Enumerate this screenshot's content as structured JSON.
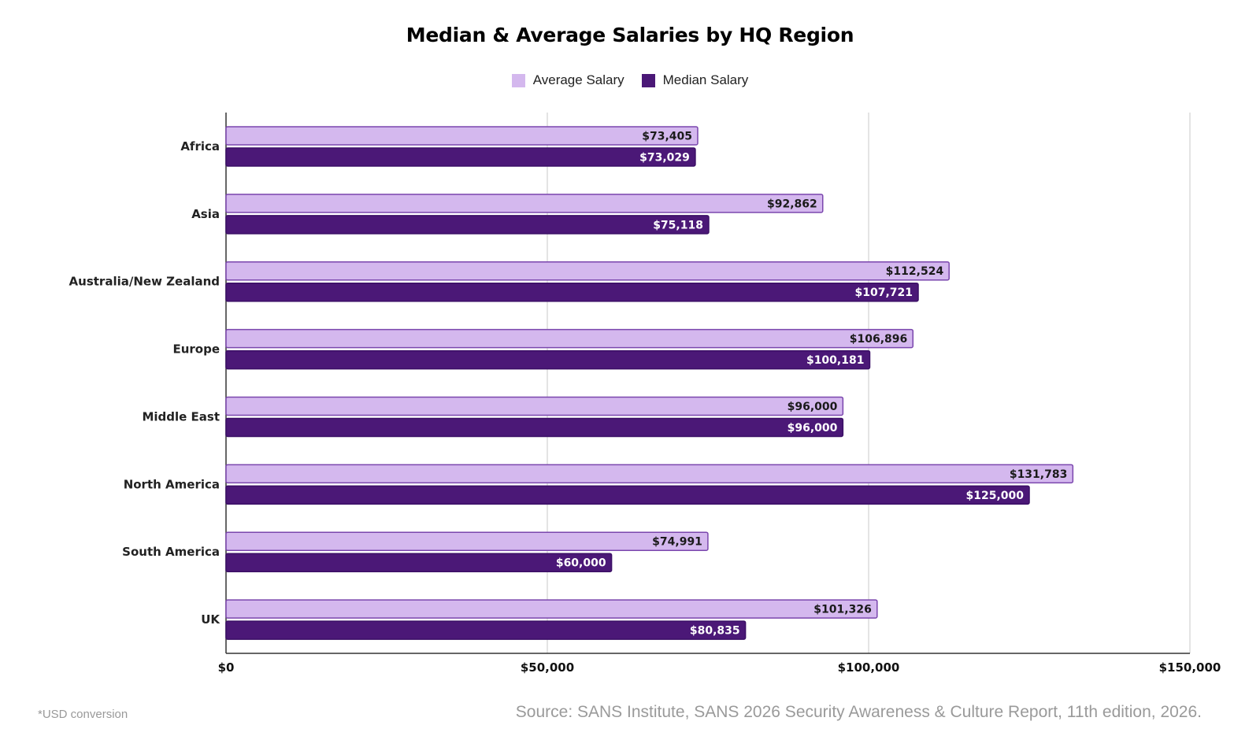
{
  "chart_data": {
    "type": "bar",
    "orientation": "horizontal",
    "title": "Median & Average Salaries by HQ Region",
    "categories": [
      "Africa",
      "Asia",
      "Australia/New Zealand",
      "Europe",
      "Middle East",
      "North America",
      "South America",
      "UK"
    ],
    "series": [
      {
        "name": "Average Salary",
        "color": "#d4b8ee",
        "values": [
          73405,
          92862,
          112524,
          106896,
          96000,
          131783,
          74991,
          101326
        ],
        "labels": [
          "$73,405",
          "$92,862",
          "$112,524",
          "$106,896",
          "$96,000",
          "$131,783",
          "$74,991",
          "$101,326"
        ]
      },
      {
        "name": "Median Salary",
        "color": "#4b1877",
        "values": [
          73029,
          75118,
          107721,
          100181,
          96000,
          125000,
          60000,
          80835
        ],
        "labels": [
          "$73,029",
          "$75,118",
          "$107,721",
          "$100,181",
          "$96,000",
          "$125,000",
          "$60,000",
          "$80,835"
        ]
      }
    ],
    "xlim": [
      0,
      150000
    ],
    "xticks": [
      0,
      50000,
      100000,
      150000
    ],
    "xtick_labels": [
      "$0",
      "$50,000",
      "$100,000",
      "$150,000"
    ],
    "grid": true,
    "legend_position": "top-center"
  },
  "footnote": "*USD conversion",
  "source": "Source: SANS Institute, SANS 2026 Security Awareness & Culture Report, 11th edition, 2026."
}
